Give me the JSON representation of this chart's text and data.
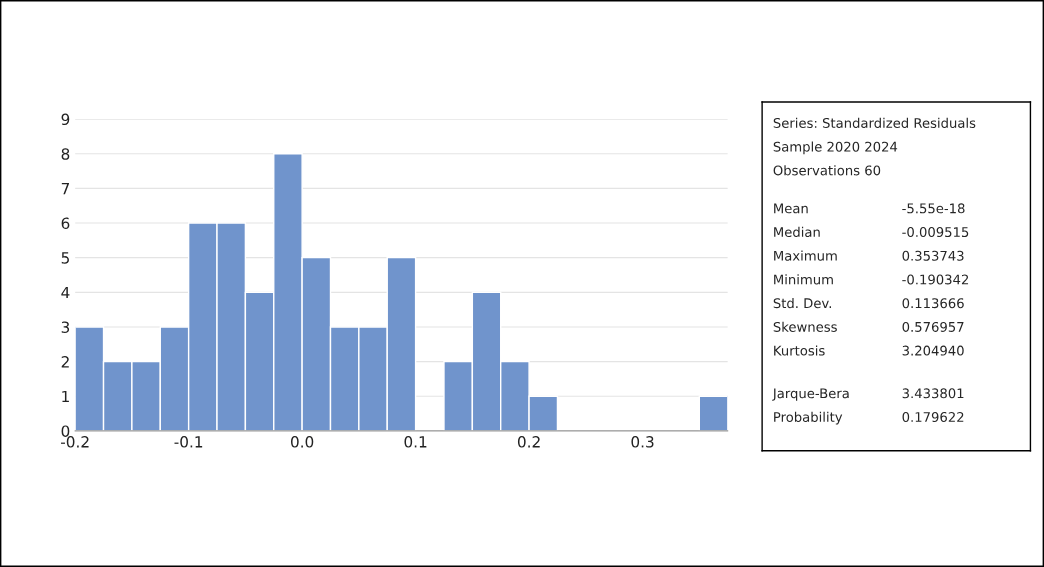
{
  "chart_data": {
    "type": "histogram",
    "bins": [
      -0.2,
      -0.175,
      -0.15,
      -0.125,
      -0.1,
      -0.075,
      -0.05,
      -0.025,
      0.0,
      0.025,
      0.05,
      0.075,
      0.1,
      0.125,
      0.15,
      0.175,
      0.2,
      0.225,
      0.25,
      0.275,
      0.3,
      0.325,
      0.35,
      0.375
    ],
    "values": [
      3,
      2,
      2,
      3,
      6,
      6,
      4,
      8,
      5,
      3,
      3,
      5,
      0,
      2,
      4,
      2,
      1,
      0,
      0,
      0,
      0,
      0,
      1
    ],
    "color": "#7094cc",
    "xlim": [
      -0.2,
      0.375
    ],
    "xticks": [
      {
        "value": -0.2,
        "label": "-0.2"
      },
      {
        "value": -0.1,
        "label": "-0.1"
      },
      {
        "value": 0.0,
        "label": "0.0"
      },
      {
        "value": 0.1,
        "label": "0.1"
      },
      {
        "value": 0.2,
        "label": "0.2"
      },
      {
        "value": 0.3,
        "label": "0.3"
      }
    ],
    "ylim": [
      0,
      9
    ],
    "yticks": [
      0,
      1,
      2,
      3,
      4,
      5,
      6,
      7,
      8,
      9
    ],
    "grid": "y",
    "annotations": [
      "Series: Standardized Residuals",
      "Sample 2020 2024",
      "Observations 60",
      "Mean",
      "-5.55e-18",
      "Median",
      "-0.009515",
      "Maximum",
      "0.353743",
      "Minimum",
      "-0.190342",
      "Std. Dev.",
      "0.113666",
      "Skewness",
      "0.576957",
      "Kurtosis",
      "3.204940",
      "Jarque-Bera",
      "3.433801",
      "Probability",
      "0.179622"
    ]
  }
}
